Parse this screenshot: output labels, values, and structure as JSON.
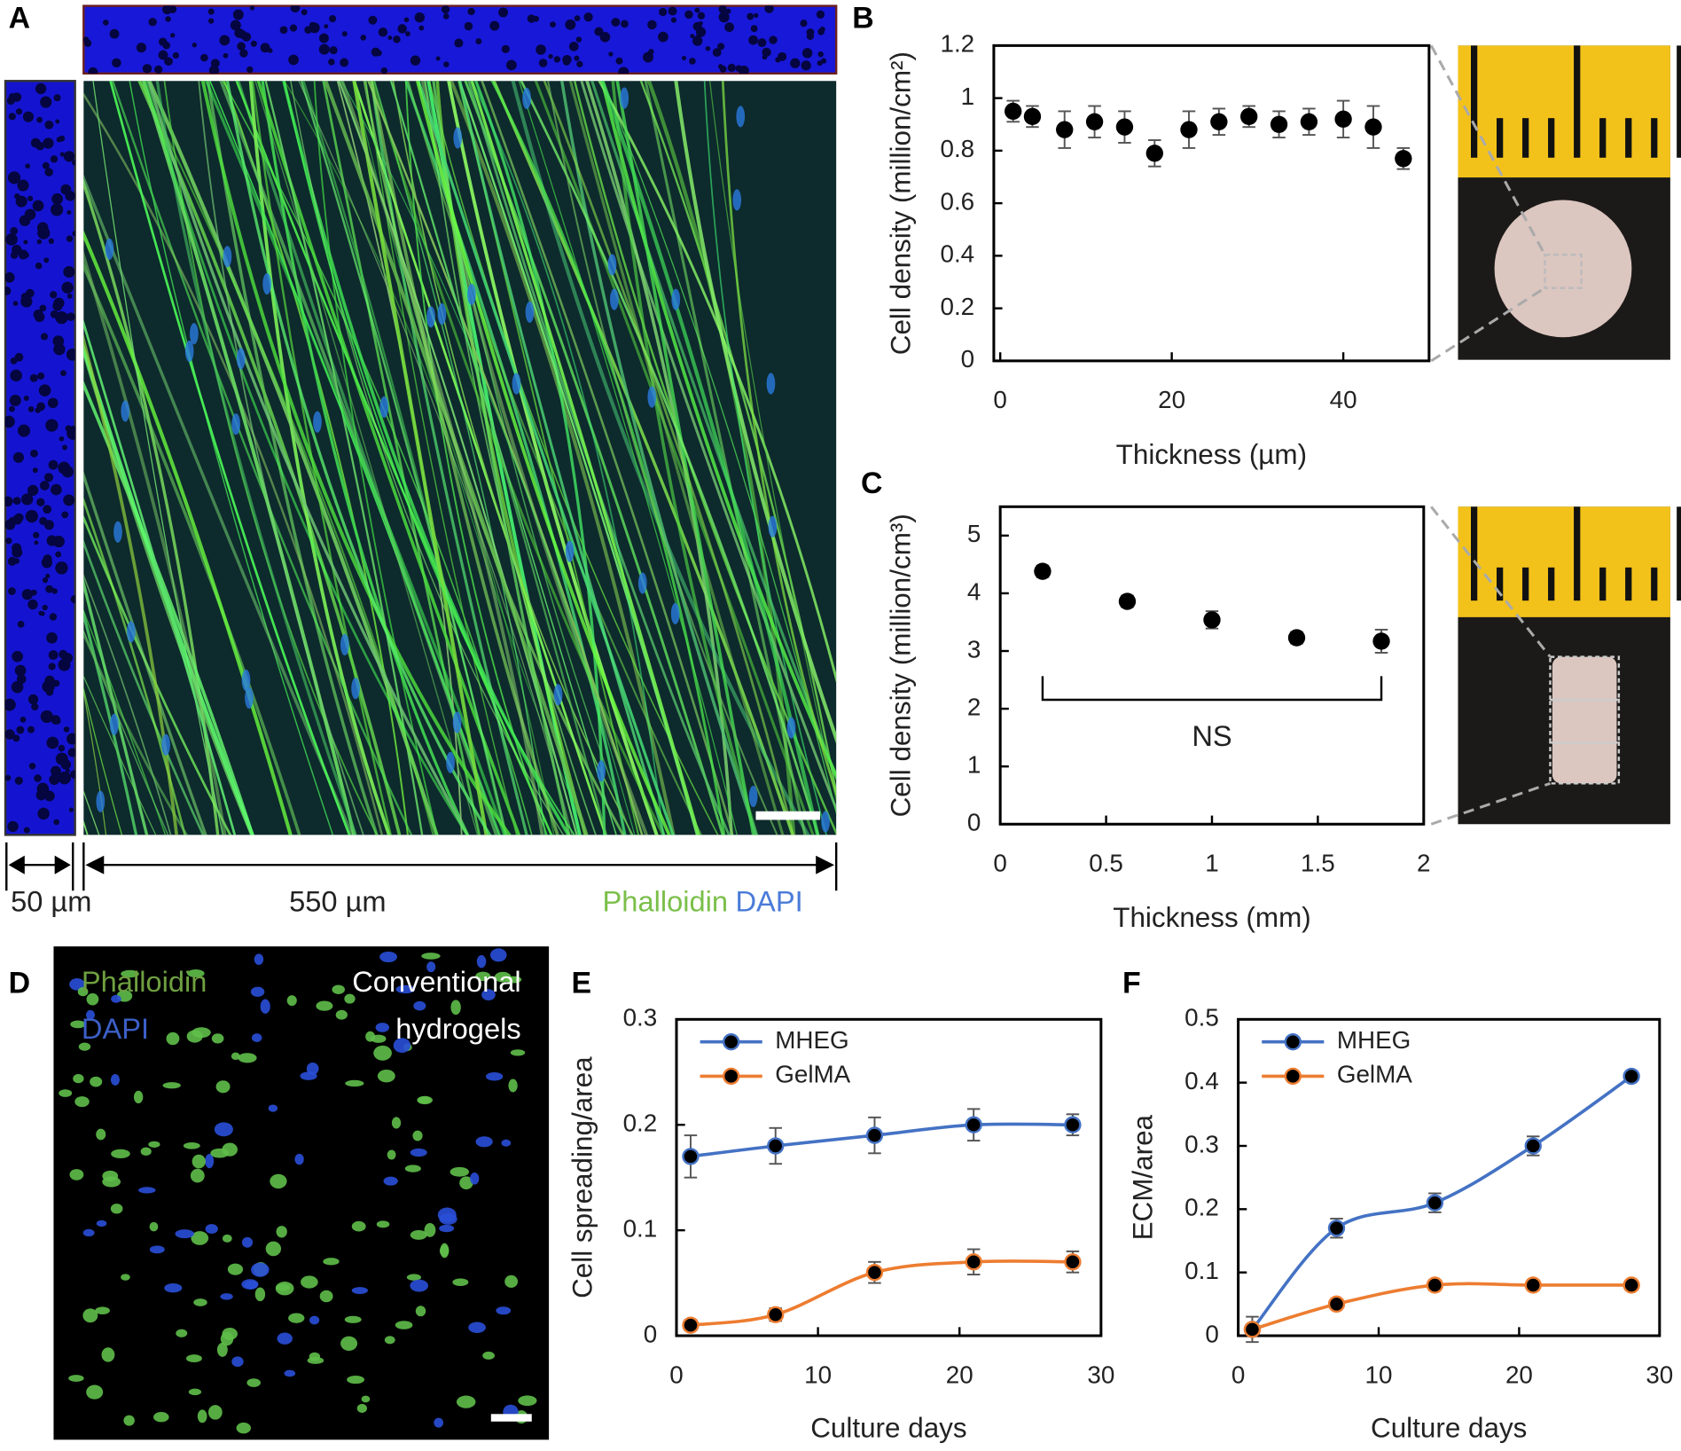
{
  "figure": {
    "panel_labels": [
      "A",
      "B",
      "C",
      "D",
      "E",
      "F"
    ],
    "panel_a": {
      "scale_left": "50 µm",
      "scale_main": "550 µm",
      "stain_1": "Phalloidin",
      "stain_2": "DAPI"
    },
    "panel_d": {
      "stain_1": "Phalloidin",
      "stain_2": "DAPI",
      "label_lines": [
        "Conventional",
        "hydrogels"
      ]
    }
  },
  "chart_data": [
    {
      "type": "scatter",
      "x_label": "Thickness (µm)",
      "y_label": "Cell density (million/cm²)",
      "color": "#000000",
      "x": [
        1.5,
        3.75,
        7.5,
        11,
        14.5,
        18,
        22,
        25.5,
        29,
        32.5,
        36,
        40,
        43.5,
        47
      ],
      "values": [
        0.95,
        0.93,
        0.88,
        0.91,
        0.89,
        0.79,
        0.88,
        0.91,
        0.93,
        0.9,
        0.91,
        0.92,
        0.89,
        0.77
      ],
      "errors": [
        0.04,
        0.04,
        0.07,
        0.06,
        0.06,
        0.05,
        0.07,
        0.05,
        0.04,
        0.05,
        0.05,
        0.07,
        0.08,
        0.04
      ],
      "xlim": [
        -0.75,
        50
      ],
      "ylim": [
        0,
        1.2
      ],
      "xticks": [
        0,
        20,
        40
      ],
      "yticks": [
        0,
        0.2,
        0.4,
        0.6,
        0.8,
        1,
        1.2
      ]
    },
    {
      "type": "scatter",
      "x_label": "Thickness (mm)",
      "y_label": "Cell density (million/cm³)",
      "color": "#000000",
      "x": [
        0.2,
        0.6,
        1.0,
        1.4,
        1.8
      ],
      "values": [
        4.38,
        3.86,
        3.54,
        3.23,
        3.17
      ],
      "errors": [
        0.1,
        0.1,
        0.15,
        0.1,
        0.2
      ],
      "annotation": "NS",
      "xlim": [
        0,
        2
      ],
      "ylim": [
        0,
        5.5
      ],
      "xticks": [
        0,
        0.5,
        1,
        1.5,
        2
      ],
      "yticks": [
        0,
        1,
        2,
        3,
        4,
        5
      ]
    },
    {
      "type": "line",
      "x_label": "Culture days",
      "y_label": "Cell spreading/area",
      "legend": "upper left",
      "x": [
        1,
        7,
        14,
        21,
        28
      ],
      "series": [
        {
          "name": "MHEG",
          "color": "#4472c4",
          "values": [
            0.17,
            0.18,
            0.19,
            0.2,
            0.2
          ],
          "errors": [
            0.02,
            0.017,
            0.017,
            0.015,
            0.01
          ]
        },
        {
          "name": "GelMA",
          "color": "#ed7d31",
          "values": [
            0.01,
            0.02,
            0.06,
            0.07,
            0.07
          ],
          "errors": [
            0.005,
            0.006,
            0.01,
            0.012,
            0.01
          ]
        }
      ],
      "xlim": [
        0,
        30
      ],
      "ylim": [
        0,
        0.3
      ],
      "xticks": [
        0,
        10,
        20,
        30
      ],
      "yticks": [
        0,
        0.1,
        0.2,
        0.3
      ]
    },
    {
      "type": "line",
      "x_label": "Culture days",
      "y_label": "ECM/area",
      "legend": "upper left",
      "x": [
        1,
        7,
        14,
        21,
        28
      ],
      "series": [
        {
          "name": "MHEG",
          "color": "#4472c4",
          "values": [
            0.01,
            0.17,
            0.21,
            0.3,
            0.41
          ],
          "errors": [
            0.02,
            0.015,
            0.015,
            0.015,
            0.005
          ]
        },
        {
          "name": "GelMA",
          "color": "#ed7d31",
          "values": [
            0.01,
            0.05,
            0.08,
            0.08,
            0.08
          ],
          "errors": [
            0.005,
            0.005,
            0.008,
            0.008,
            0.006
          ]
        }
      ],
      "xlim": [
        0,
        30
      ],
      "ylim": [
        0,
        0.5
      ],
      "xticks": [
        0,
        10,
        20,
        30
      ],
      "yticks": [
        0,
        0.1,
        0.2,
        0.3,
        0.4,
        0.5
      ]
    }
  ]
}
